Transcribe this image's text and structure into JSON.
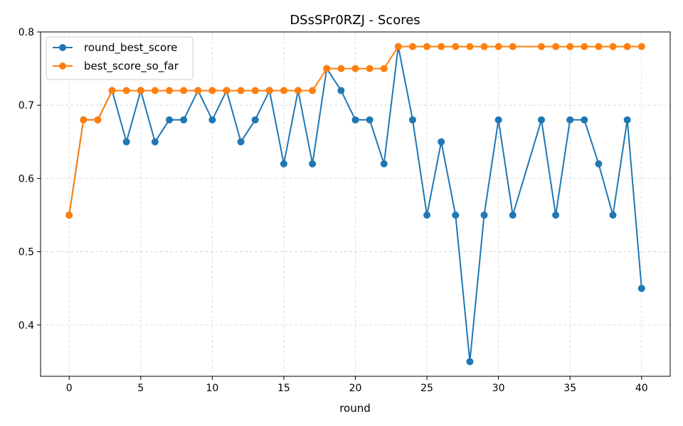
{
  "chart_data": {
    "type": "line",
    "title": "DSsSPr0RZJ - Scores",
    "xlabel": "round",
    "ylabel": "",
    "xlim": [
      -2,
      42
    ],
    "ylim": [
      0.33,
      0.8
    ],
    "xticks": [
      0,
      5,
      10,
      15,
      20,
      25,
      30,
      35,
      40
    ],
    "yticks": [
      0.4,
      0.5,
      0.6,
      0.7,
      0.8
    ],
    "grid": true,
    "legend_position": "upper-left",
    "series": [
      {
        "name": "round_best_score",
        "color": "#1f77b4",
        "x": [
          0,
          1,
          2,
          3,
          4,
          5,
          6,
          7,
          8,
          9,
          10,
          11,
          12,
          13,
          14,
          15,
          16,
          17,
          18,
          19,
          20,
          21,
          22,
          23,
          24,
          25,
          26,
          27,
          28,
          29,
          30,
          31,
          33,
          34,
          35,
          36,
          37,
          38,
          39,
          40
        ],
        "y": [
          0.55,
          0.68,
          0.68,
          0.72,
          0.65,
          0.72,
          0.65,
          0.68,
          0.68,
          0.72,
          0.68,
          0.72,
          0.65,
          0.68,
          0.72,
          0.62,
          0.72,
          0.62,
          0.75,
          0.72,
          0.68,
          0.68,
          0.62,
          0.78,
          0.68,
          0.55,
          0.65,
          0.55,
          0.35,
          0.55,
          0.68,
          0.55,
          0.68,
          0.55,
          0.68,
          0.68,
          0.62,
          0.55,
          0.68,
          0.45
        ]
      },
      {
        "name": "best_score_so_far",
        "color": "#ff7f0e",
        "x": [
          0,
          1,
          2,
          3,
          4,
          5,
          6,
          7,
          8,
          9,
          10,
          11,
          12,
          13,
          14,
          15,
          16,
          17,
          18,
          19,
          20,
          21,
          22,
          23,
          24,
          25,
          26,
          27,
          28,
          29,
          30,
          31,
          33,
          34,
          35,
          36,
          37,
          38,
          39,
          40
        ],
        "y": [
          0.55,
          0.68,
          0.68,
          0.72,
          0.72,
          0.72,
          0.72,
          0.72,
          0.72,
          0.72,
          0.72,
          0.72,
          0.72,
          0.72,
          0.72,
          0.72,
          0.72,
          0.72,
          0.75,
          0.75,
          0.75,
          0.75,
          0.75,
          0.78,
          0.78,
          0.78,
          0.78,
          0.78,
          0.78,
          0.78,
          0.78,
          0.78,
          0.78,
          0.78,
          0.78,
          0.78,
          0.78,
          0.78,
          0.78,
          0.78
        ]
      }
    ]
  }
}
